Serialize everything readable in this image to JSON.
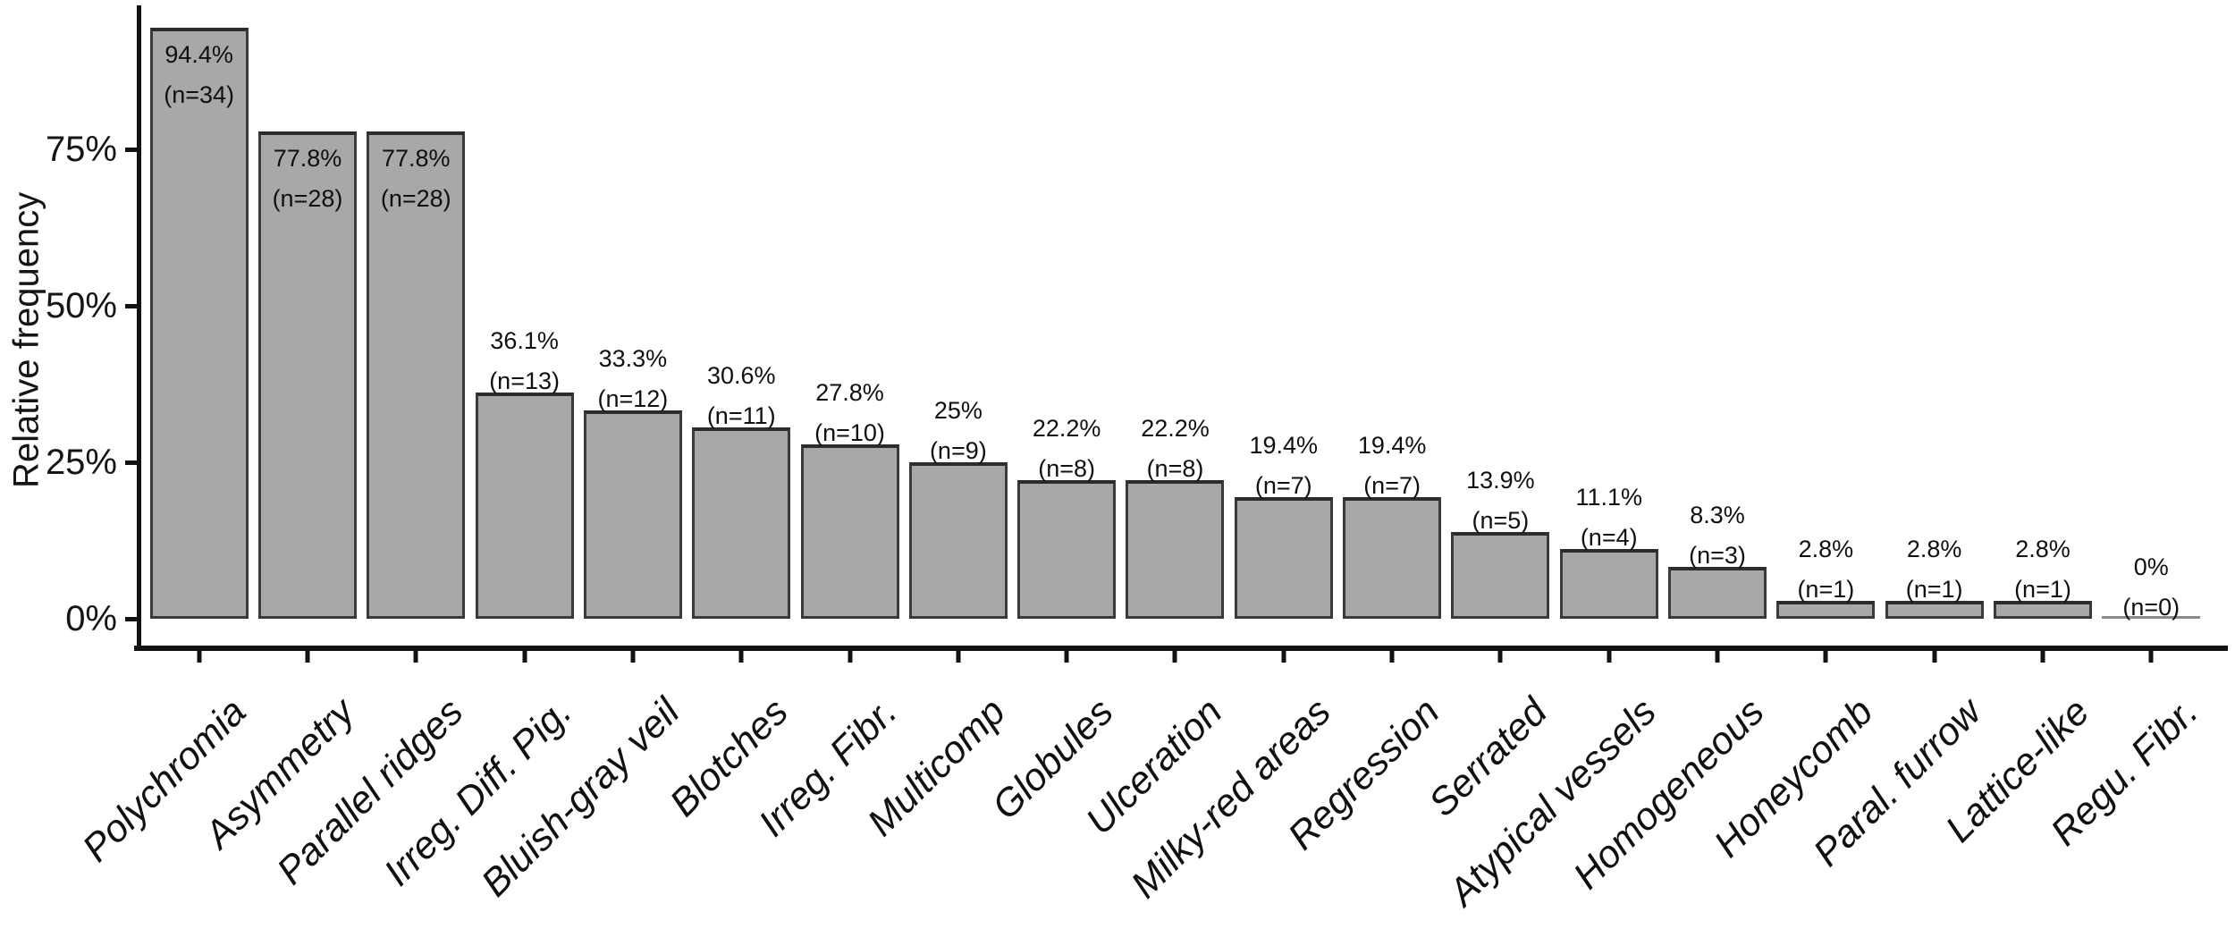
{
  "chart_data": {
    "type": "bar",
    "title": "",
    "ylabel": "Relative frequency",
    "xlabel": "",
    "ylim": [
      0,
      100
    ],
    "y_ticks": [
      {
        "value": 0,
        "label": "0%"
      },
      {
        "value": 25,
        "label": "25%"
      },
      {
        "value": 50,
        "label": "50%"
      },
      {
        "value": 75,
        "label": "75%"
      }
    ],
    "grid": false,
    "legend": false,
    "bar_fill_color": "#a8a8a8",
    "bar_border_color": "#3a3a3a",
    "zero_bar_line_color": "#8a8a8a",
    "axis_color": "#121212",
    "categories": [
      "Polychromia",
      "Asymmetry",
      "Parallel ridges",
      "Irreg. Diff. Pig.",
      "Bluish-gray veil",
      "Blotches",
      "Irreg. Fibr.",
      "Multicomp",
      "Globules",
      "Ulceration",
      "Milky-red areas",
      "Regression",
      "Serrated",
      "Atypical vessels",
      "Homogeneous",
      "Honeycomb",
      "Paral. furrow",
      "Lattice-like",
      "Regu. Fibr."
    ],
    "values": [
      94.4,
      77.8,
      77.8,
      36.1,
      33.3,
      30.6,
      27.8,
      25,
      22.2,
      22.2,
      19.4,
      19.4,
      13.9,
      11.1,
      8.3,
      2.8,
      2.8,
      2.8,
      0
    ],
    "counts": [
      34,
      28,
      28,
      13,
      12,
      11,
      10,
      9,
      8,
      8,
      7,
      7,
      5,
      4,
      3,
      1,
      1,
      1,
      0
    ],
    "percent_labels": [
      "94.4%",
      "77.8%",
      "77.8%",
      "36.1%",
      "33.3%",
      "30.6%",
      "27.8%",
      "25%",
      "22.2%",
      "22.2%",
      "19.4%",
      "19.4%",
      "13.9%",
      "11.1%",
      "8.3%",
      "2.8%",
      "2.8%",
      "2.8%",
      "0%"
    ],
    "count_labels": [
      "(n=34)",
      "(n=28)",
      "(n=28)",
      "(n=13)",
      "(n=12)",
      "(n=11)",
      "(n=10)",
      "(n=9)",
      "(n=8)",
      "(n=8)",
      "(n=7)",
      "(n=7)",
      "(n=5)",
      "(n=4)",
      "(n=3)",
      "(n=1)",
      "(n=1)",
      "(n=1)",
      "(n=0)"
    ]
  }
}
